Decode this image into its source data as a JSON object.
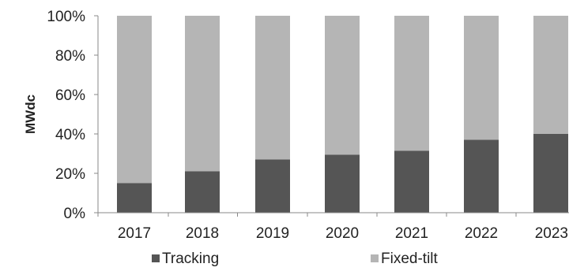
{
  "chart_data": {
    "type": "bar",
    "stacked": true,
    "percent_stacked": true,
    "categories": [
      "2017",
      "2018",
      "2019",
      "2020",
      "2021",
      "2022",
      "2023"
    ],
    "series": [
      {
        "name": "Tracking",
        "values": [
          15,
          21,
          27,
          29.5,
          31.5,
          37,
          40
        ],
        "color": "#555555"
      },
      {
        "name": "Fixed-tilt",
        "values": [
          85,
          79,
          73,
          70.5,
          68.5,
          63,
          60
        ],
        "color": "#b5b5b5"
      }
    ],
    "title": "",
    "xlabel": "",
    "ylabel": "MWdc",
    "ylim": [
      0,
      100
    ],
    "yticks": [
      "0%",
      "20%",
      "40%",
      "60%",
      "80%",
      "100%"
    ],
    "grid": false,
    "legend_position": "bottom"
  }
}
